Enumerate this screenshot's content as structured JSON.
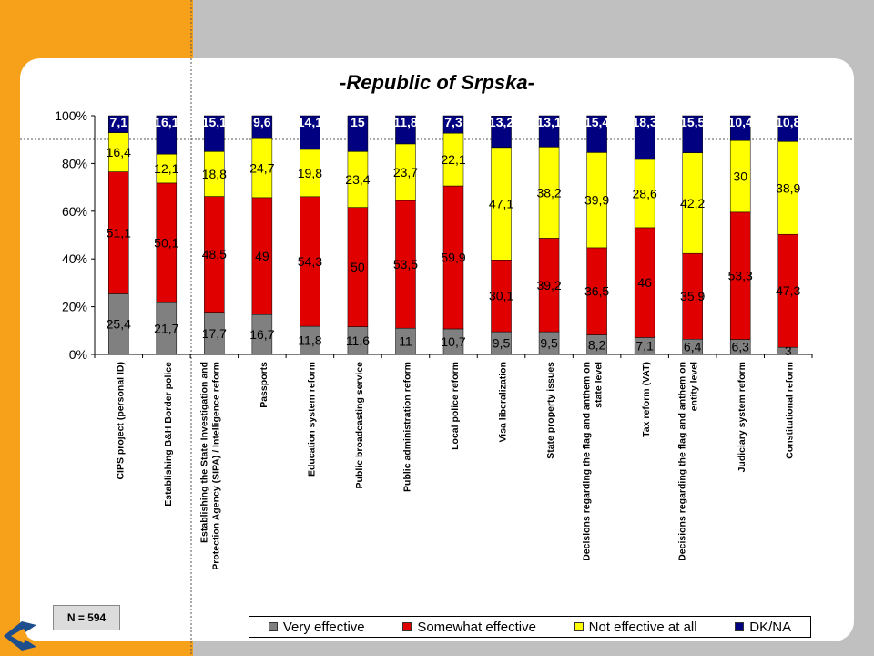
{
  "title": "-Republic of Srpska-",
  "n_label": "N = 594",
  "colors": {
    "very": "#808080",
    "somewhat": "#e00000",
    "not": "#ffff00",
    "dkna": "#000080"
  },
  "chart_data": {
    "type": "bar",
    "stacked": true,
    "ylim": [
      0,
      100
    ],
    "y_ticks": [
      "0%",
      "20%",
      "40%",
      "60%",
      "80%",
      "100%"
    ],
    "categories": [
      "CIPS project (personal ID)",
      "Establishing B&H Border police",
      "Establishing the State Investigation and Protection Agency (SIPA) / Intelligence reform",
      "Passports",
      "Education system reform",
      "Public broadcasting service",
      "Public administration reform",
      "Local police reform",
      "Visa liberalization",
      "State property issues",
      "Decisions regarding the flag and anthem on state level",
      "Tax reform (VAT)",
      "Decisions regarding the flag and anthem on entity level",
      "Judiciary system reform",
      "Constitutional reform"
    ],
    "series": [
      {
        "name": "Very effective",
        "values": [
          25.4,
          21.7,
          17.7,
          16.7,
          11.8,
          11.6,
          11,
          10.7,
          9.5,
          9.5,
          8.2,
          7.1,
          6.4,
          6.3,
          3
        ]
      },
      {
        "name": "Somewhat effective",
        "values": [
          51.1,
          50.1,
          48.5,
          49,
          54.3,
          50,
          53.5,
          59.9,
          30.1,
          39.2,
          36.5,
          46,
          35.9,
          53.3,
          47.3
        ]
      },
      {
        "name": "Not effective at all",
        "values": [
          16.4,
          12.1,
          18.8,
          24.7,
          19.8,
          23.4,
          23.7,
          22.1,
          47.1,
          38.2,
          39.9,
          28.6,
          42.2,
          30,
          38.9
        ]
      },
      {
        "name": "DK/NA",
        "values": [
          7.1,
          16.1,
          15.1,
          9.6,
          14.1,
          15,
          11.8,
          7.3,
          13.2,
          13.1,
          15.4,
          18.3,
          15.5,
          10.4,
          10.8
        ]
      }
    ],
    "labels": [
      [
        "25,4",
        "21,7",
        "17,7",
        "16,7",
        "11,8",
        "11,6",
        "11",
        "10,7",
        "9,5",
        "9,5",
        "8,2",
        "7,1",
        "6,4",
        "6,3",
        "3"
      ],
      [
        "51,1",
        "50,1",
        "48,5",
        "49",
        "54,3",
        "50",
        "53,5",
        "59,9",
        "30,1",
        "39,2",
        "36,5",
        "46",
        "35,9",
        "53,3",
        "47,3"
      ],
      [
        "16,4",
        "12,1",
        "18,8",
        "24,7",
        "19,8",
        "23,4",
        "23,7",
        "22,1",
        "47,1",
        "38,2",
        "39,9",
        "28,6",
        "42,2",
        "30",
        "38,9"
      ],
      [
        "7,1",
        "16,1",
        "15,1",
        "9,6",
        "14,1",
        "15",
        "11,8",
        "7,3",
        "13,2",
        "13,1",
        "15,4",
        "18,3",
        "15,5",
        "10,4",
        "10,8"
      ]
    ],
    "category_lines": [
      [
        "CIPS project (personal ID)"
      ],
      [
        "Establishing B&H Border police"
      ],
      [
        "Establishing the State Investigation and",
        "Protection Agency (SIPA) / Intelligence reform"
      ],
      [
        "Passports"
      ],
      [
        "Education system reform"
      ],
      [
        "Public broadcasting service"
      ],
      [
        "Public administration reform"
      ],
      [
        "Local police reform"
      ],
      [
        "Visa liberalization"
      ],
      [
        "State property issues"
      ],
      [
        "Decisions regarding the flag and anthem on",
        "state level"
      ],
      [
        "Tax reform (VAT)"
      ],
      [
        "Decisions regarding the flag and anthem on",
        "entity level"
      ],
      [
        "Judiciary system reform"
      ],
      [
        "Constitutional reform"
      ]
    ]
  },
  "legend": [
    {
      "label": "Very effective"
    },
    {
      "label": "Somewhat effective"
    },
    {
      "label": "Not effective at all"
    },
    {
      "label": "DK/NA"
    }
  ]
}
